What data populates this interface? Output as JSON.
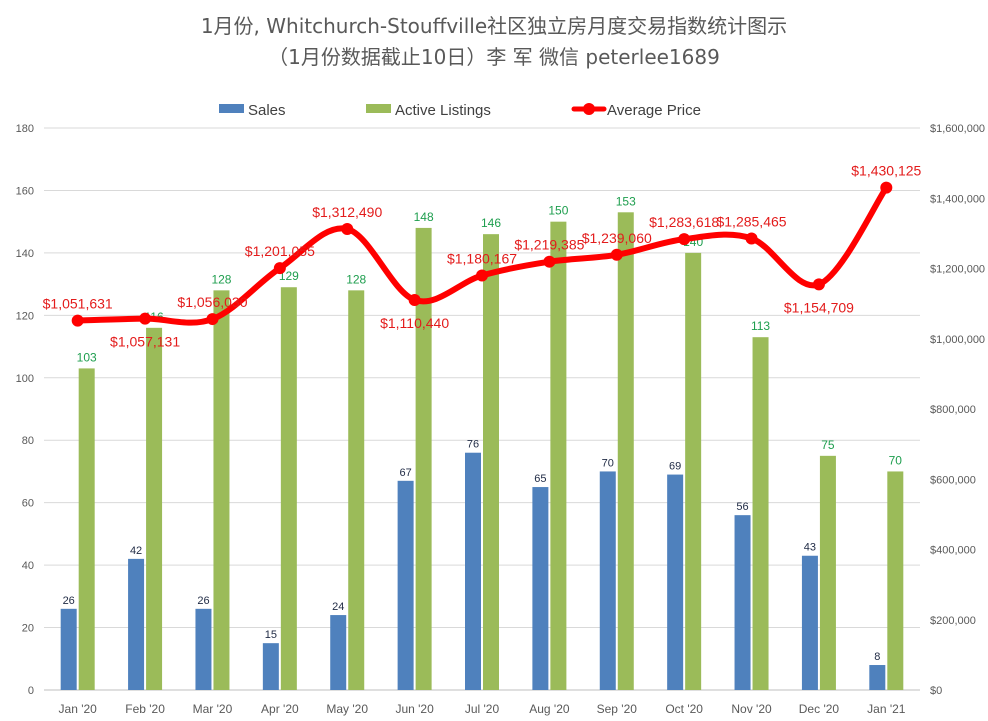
{
  "chart_data": {
    "type": "bar",
    "title_line1": "1月份, Whitchurch-Stouffville社区独立房月度交易指数统计图示",
    "title_line2": "（1月份数据截止10日）李 军  微信  peterlee1689",
    "categories": [
      "Jan '20",
      "Feb '20",
      "Mar '20",
      "Apr '20",
      "May '20",
      "Jun '20",
      "Jul '20",
      "Aug '20",
      "Sep '20",
      "Oct '20",
      "Nov '20",
      "Dec '20",
      "Jan '21"
    ],
    "series": [
      {
        "name": "Sales",
        "type": "bar",
        "axis": "left",
        "color": "#4f81bd",
        "values": [
          26,
          42,
          26,
          15,
          24,
          67,
          76,
          65,
          70,
          69,
          56,
          43,
          8
        ],
        "labels": [
          "26",
          "42",
          "26",
          "15",
          "24",
          "67",
          "76",
          "65",
          "70",
          "69",
          "56",
          "43",
          "8"
        ]
      },
      {
        "name": "Active Listings",
        "type": "bar",
        "axis": "left",
        "color": "#9bbb59",
        "values": [
          103,
          116,
          128,
          129,
          128,
          148,
          146,
          150,
          153,
          140,
          113,
          75,
          70
        ],
        "labels": [
          "103",
          "116",
          "128",
          "129",
          "128",
          "148",
          "146",
          "150",
          "153",
          "140",
          "113",
          "75",
          "70"
        ]
      },
      {
        "name": "Average Price",
        "type": "line",
        "axis": "right",
        "color": "#ff0000",
        "values": [
          1051631,
          1057131,
          1056030,
          1201055,
          1312490,
          1110440,
          1180167,
          1219385,
          1239060,
          1283618,
          1285465,
          1154709,
          1430125
        ],
        "labels": [
          "$1,051,631",
          "$1,057,131",
          "$1,056,030",
          "$1,201,055",
          "$1,312,490",
          "$1,110,440",
          "$1,180,167",
          "$1,219,385",
          "$1,239,060",
          "$1,283,618",
          "$1,285,465",
          "$1,154,709",
          "$1,430,125"
        ]
      }
    ],
    "y_left": {
      "min": 0,
      "max": 180,
      "ticks": [
        "0",
        "20",
        "40",
        "60",
        "80",
        "100",
        "120",
        "140",
        "160",
        "180"
      ]
    },
    "y_right": {
      "min": 0,
      "max": 1600000,
      "ticks": [
        "$0",
        "$200,000",
        "$400,000",
        "$600,000",
        "$800,000",
        "$1,000,000",
        "$1,200,000",
        "$1,400,000",
        "$1,600,000"
      ]
    },
    "legend": [
      "Sales",
      "Active Listings",
      "Average Price"
    ],
    "legend_position": "top",
    "grid": "horizontal"
  }
}
